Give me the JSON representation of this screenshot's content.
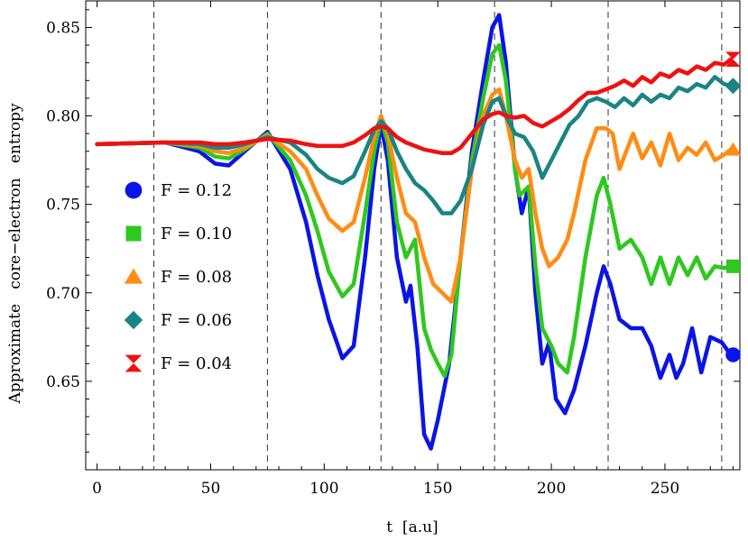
{
  "chart_data": {
    "type": "line",
    "title": "",
    "xlabel": "t  [a.u]",
    "ylabel": "Approximate   core−electron   entropy",
    "xlim": [
      -5,
      283
    ],
    "ylim": [
      0.6,
      0.865
    ],
    "xticks": [
      0,
      50,
      100,
      150,
      200,
      250
    ],
    "xtick_labels": [
      "0",
      "50",
      "100",
      "150",
      "200",
      "250"
    ],
    "yticks": [
      0.65,
      0.7,
      0.75,
      0.8,
      0.85
    ],
    "ytick_labels": [
      "0.65",
      "0.70",
      "0.75",
      "0.80",
      "0.85"
    ],
    "vertical_dashed_lines": [
      25,
      75,
      125,
      175,
      225,
      275
    ],
    "grid": false,
    "legend_position": "left-center",
    "series": [
      {
        "name": "F = 0.12",
        "color": "#0a14e6",
        "marker": "circle",
        "end_marker": [
          280,
          0.665
        ],
        "points": [
          [
            0,
            0.784
          ],
          [
            30,
            0.785
          ],
          [
            45,
            0.78
          ],
          [
            52,
            0.773
          ],
          [
            58,
            0.772
          ],
          [
            65,
            0.78
          ],
          [
            75,
            0.791
          ],
          [
            85,
            0.77
          ],
          [
            92,
            0.74
          ],
          [
            97,
            0.71
          ],
          [
            102,
            0.685
          ],
          [
            108,
            0.663
          ],
          [
            113,
            0.67
          ],
          [
            118,
            0.72
          ],
          [
            122,
            0.77
          ],
          [
            125,
            0.795
          ],
          [
            128,
            0.775
          ],
          [
            132,
            0.72
          ],
          [
            136,
            0.695
          ],
          [
            138,
            0.704
          ],
          [
            141,
            0.67
          ],
          [
            144,
            0.62
          ],
          [
            147,
            0.612
          ],
          [
            150,
            0.628
          ],
          [
            155,
            0.66
          ],
          [
            160,
            0.72
          ],
          [
            165,
            0.78
          ],
          [
            170,
            0.82
          ],
          [
            174,
            0.85
          ],
          [
            177,
            0.857
          ],
          [
            180,
            0.83
          ],
          [
            184,
            0.77
          ],
          [
            187,
            0.745
          ],
          [
            190,
            0.76
          ],
          [
            193,
            0.7
          ],
          [
            196,
            0.66
          ],
          [
            199,
            0.672
          ],
          [
            202,
            0.64
          ],
          [
            206,
            0.632
          ],
          [
            210,
            0.645
          ],
          [
            215,
            0.67
          ],
          [
            220,
            0.7
          ],
          [
            223,
            0.715
          ],
          [
            226,
            0.705
          ],
          [
            230,
            0.685
          ],
          [
            235,
            0.68
          ],
          [
            240,
            0.68
          ],
          [
            244,
            0.67
          ],
          [
            248,
            0.652
          ],
          [
            252,
            0.665
          ],
          [
            255,
            0.652
          ],
          [
            258,
            0.66
          ],
          [
            262,
            0.68
          ],
          [
            266,
            0.655
          ],
          [
            270,
            0.675
          ],
          [
            275,
            0.672
          ],
          [
            279,
            0.665
          ]
        ]
      },
      {
        "name": "F = 0.10",
        "color": "#2ec81e",
        "marker": "square",
        "end_marker": [
          280,
          0.715
        ],
        "points": [
          [
            0,
            0.784
          ],
          [
            30,
            0.785
          ],
          [
            45,
            0.782
          ],
          [
            52,
            0.777
          ],
          [
            58,
            0.776
          ],
          [
            65,
            0.781
          ],
          [
            75,
            0.79
          ],
          [
            85,
            0.775
          ],
          [
            92,
            0.755
          ],
          [
            97,
            0.735
          ],
          [
            102,
            0.712
          ],
          [
            108,
            0.698
          ],
          [
            113,
            0.705
          ],
          [
            118,
            0.745
          ],
          [
            122,
            0.78
          ],
          [
            125,
            0.798
          ],
          [
            128,
            0.785
          ],
          [
            132,
            0.74
          ],
          [
            136,
            0.72
          ],
          [
            140,
            0.73
          ],
          [
            144,
            0.68
          ],
          [
            147,
            0.668
          ],
          [
            150,
            0.66
          ],
          [
            153,
            0.653
          ],
          [
            156,
            0.665
          ],
          [
            160,
            0.72
          ],
          [
            165,
            0.775
          ],
          [
            170,
            0.81
          ],
          [
            174,
            0.835
          ],
          [
            177,
            0.84
          ],
          [
            180,
            0.82
          ],
          [
            184,
            0.77
          ],
          [
            186,
            0.755
          ],
          [
            190,
            0.76
          ],
          [
            193,
            0.715
          ],
          [
            196,
            0.68
          ],
          [
            200,
            0.67
          ],
          [
            203,
            0.66
          ],
          [
            207,
            0.655
          ],
          [
            210,
            0.675
          ],
          [
            215,
            0.72
          ],
          [
            220,
            0.755
          ],
          [
            223,
            0.765
          ],
          [
            226,
            0.75
          ],
          [
            230,
            0.725
          ],
          [
            235,
            0.73
          ],
          [
            240,
            0.72
          ],
          [
            244,
            0.705
          ],
          [
            248,
            0.72
          ],
          [
            252,
            0.705
          ],
          [
            256,
            0.72
          ],
          [
            260,
            0.71
          ],
          [
            264,
            0.72
          ],
          [
            268,
            0.708
          ],
          [
            272,
            0.715
          ],
          [
            276,
            0.714
          ],
          [
            279,
            0.715
          ]
        ]
      },
      {
        "name": "F = 0.08",
        "color": "#ff8c14",
        "marker": "triangle",
        "end_marker": [
          280,
          0.781
        ],
        "points": [
          [
            0,
            0.784
          ],
          [
            30,
            0.785
          ],
          [
            45,
            0.783
          ],
          [
            52,
            0.78
          ],
          [
            58,
            0.779
          ],
          [
            65,
            0.782
          ],
          [
            75,
            0.789
          ],
          [
            85,
            0.78
          ],
          [
            92,
            0.77
          ],
          [
            97,
            0.755
          ],
          [
            102,
            0.742
          ],
          [
            108,
            0.735
          ],
          [
            113,
            0.74
          ],
          [
            118,
            0.765
          ],
          [
            122,
            0.788
          ],
          [
            125,
            0.8
          ],
          [
            128,
            0.79
          ],
          [
            132,
            0.765
          ],
          [
            136,
            0.745
          ],
          [
            140,
            0.74
          ],
          [
            144,
            0.72
          ],
          [
            148,
            0.705
          ],
          [
            152,
            0.7
          ],
          [
            156,
            0.695
          ],
          [
            160,
            0.72
          ],
          [
            165,
            0.77
          ],
          [
            170,
            0.8
          ],
          [
            174,
            0.812
          ],
          [
            177,
            0.815
          ],
          [
            180,
            0.8
          ],
          [
            184,
            0.775
          ],
          [
            187,
            0.765
          ],
          [
            190,
            0.77
          ],
          [
            193,
            0.745
          ],
          [
            196,
            0.725
          ],
          [
            199,
            0.715
          ],
          [
            203,
            0.72
          ],
          [
            207,
            0.73
          ],
          [
            210,
            0.745
          ],
          [
            215,
            0.775
          ],
          [
            220,
            0.793
          ],
          [
            224,
            0.793
          ],
          [
            227,
            0.79
          ],
          [
            230,
            0.77
          ],
          [
            233,
            0.78
          ],
          [
            236,
            0.79
          ],
          [
            240,
            0.776
          ],
          [
            244,
            0.785
          ],
          [
            248,
            0.772
          ],
          [
            252,
            0.79
          ],
          [
            256,
            0.775
          ],
          [
            260,
            0.782
          ],
          [
            264,
            0.778
          ],
          [
            268,
            0.785
          ],
          [
            272,
            0.775
          ],
          [
            276,
            0.778
          ],
          [
            279,
            0.781
          ]
        ]
      },
      {
        "name": "F = 0.06",
        "color": "#1a8484",
        "marker": "diamond",
        "end_marker": [
          280,
          0.817
        ],
        "points": [
          [
            0,
            0.784
          ],
          [
            30,
            0.785
          ],
          [
            45,
            0.784
          ],
          [
            52,
            0.782
          ],
          [
            58,
            0.782
          ],
          [
            65,
            0.784
          ],
          [
            75,
            0.788
          ],
          [
            85,
            0.785
          ],
          [
            92,
            0.778
          ],
          [
            97,
            0.77
          ],
          [
            102,
            0.765
          ],
          [
            108,
            0.762
          ],
          [
            113,
            0.766
          ],
          [
            118,
            0.78
          ],
          [
            122,
            0.792
          ],
          [
            125,
            0.797
          ],
          [
            128,
            0.793
          ],
          [
            132,
            0.78
          ],
          [
            136,
            0.77
          ],
          [
            140,
            0.762
          ],
          [
            144,
            0.758
          ],
          [
            148,
            0.752
          ],
          [
            152,
            0.745
          ],
          [
            156,
            0.745
          ],
          [
            160,
            0.752
          ],
          [
            165,
            0.77
          ],
          [
            170,
            0.795
          ],
          [
            174,
            0.808
          ],
          [
            177,
            0.81
          ],
          [
            180,
            0.8
          ],
          [
            184,
            0.79
          ],
          [
            188,
            0.788
          ],
          [
            192,
            0.78
          ],
          [
            196,
            0.765
          ],
          [
            200,
            0.775
          ],
          [
            204,
            0.785
          ],
          [
            208,
            0.795
          ],
          [
            212,
            0.8
          ],
          [
            216,
            0.808
          ],
          [
            220,
            0.81
          ],
          [
            224,
            0.808
          ],
          [
            228,
            0.805
          ],
          [
            232,
            0.81
          ],
          [
            236,
            0.806
          ],
          [
            240,
            0.812
          ],
          [
            244,
            0.808
          ],
          [
            248,
            0.812
          ],
          [
            252,
            0.81
          ],
          [
            256,
            0.816
          ],
          [
            260,
            0.814
          ],
          [
            264,
            0.818
          ],
          [
            268,
            0.816
          ],
          [
            272,
            0.822
          ],
          [
            276,
            0.818
          ],
          [
            279,
            0.817
          ]
        ]
      },
      {
        "name": "F = 0.04",
        "color": "#ee1111",
        "marker": "hourglass",
        "end_marker": [
          280,
          0.832
        ],
        "points": [
          [
            0,
            0.784
          ],
          [
            30,
            0.785
          ],
          [
            45,
            0.785
          ],
          [
            52,
            0.784
          ],
          [
            58,
            0.784
          ],
          [
            65,
            0.785
          ],
          [
            75,
            0.787
          ],
          [
            85,
            0.786
          ],
          [
            92,
            0.784
          ],
          [
            97,
            0.783
          ],
          [
            102,
            0.783
          ],
          [
            108,
            0.783
          ],
          [
            113,
            0.785
          ],
          [
            118,
            0.789
          ],
          [
            122,
            0.793
          ],
          [
            125,
            0.794
          ],
          [
            128,
            0.793
          ],
          [
            132,
            0.788
          ],
          [
            136,
            0.785
          ],
          [
            140,
            0.783
          ],
          [
            144,
            0.781
          ],
          [
            148,
            0.78
          ],
          [
            152,
            0.779
          ],
          [
            156,
            0.779
          ],
          [
            160,
            0.782
          ],
          [
            165,
            0.79
          ],
          [
            170,
            0.798
          ],
          [
            174,
            0.801
          ],
          [
            177,
            0.802
          ],
          [
            180,
            0.8
          ],
          [
            184,
            0.799
          ],
          [
            188,
            0.8
          ],
          [
            192,
            0.796
          ],
          [
            196,
            0.794
          ],
          [
            200,
            0.797
          ],
          [
            204,
            0.8
          ],
          [
            208,
            0.804
          ],
          [
            212,
            0.809
          ],
          [
            216,
            0.813
          ],
          [
            220,
            0.813
          ],
          [
            224,
            0.815
          ],
          [
            228,
            0.817
          ],
          [
            232,
            0.82
          ],
          [
            236,
            0.817
          ],
          [
            240,
            0.822
          ],
          [
            244,
            0.819
          ],
          [
            248,
            0.824
          ],
          [
            252,
            0.822
          ],
          [
            256,
            0.826
          ],
          [
            260,
            0.824
          ],
          [
            264,
            0.828
          ],
          [
            268,
            0.826
          ],
          [
            272,
            0.83
          ],
          [
            276,
            0.829
          ],
          [
            279,
            0.832
          ]
        ]
      }
    ]
  }
}
